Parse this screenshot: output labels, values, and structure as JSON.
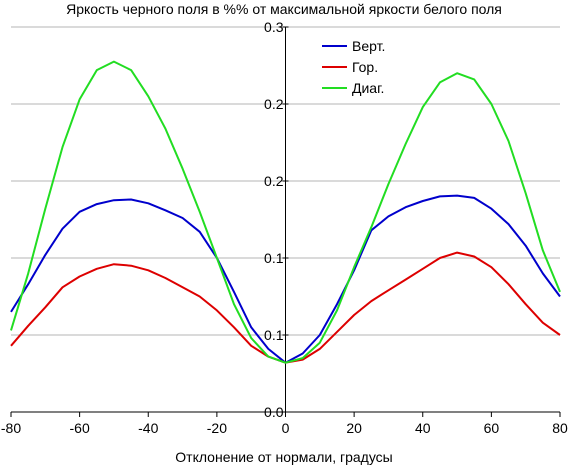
{
  "chart_data": {
    "type": "line",
    "title": "Яркость черного поля в %% от максимальной яркости белого поля",
    "xlabel": "Отклонение от нормали, градусы",
    "ylabel": "",
    "xlim": [
      -80,
      80
    ],
    "ylim": [
      0,
      0.25
    ],
    "x_ticks": [
      -80,
      -60,
      -40,
      -20,
      0,
      20,
      40,
      60,
      80
    ],
    "x_tick_labels": [
      "-80",
      "-60",
      "-40",
      "-20",
      "0",
      "20",
      "40",
      "60",
      "80"
    ],
    "y_ticks": [
      0,
      0.05,
      0.1,
      0.15,
      0.2,
      0.25
    ],
    "y_tick_labels": [
      "0.0",
      "0.1",
      "0.1",
      "0.2",
      "0.2",
      "0.3"
    ],
    "grid": "horizontal",
    "legend_position": "top-right",
    "series": [
      {
        "name": "Верт.",
        "color": "#0000cc",
        "points": [
          [
            -80,
            0.065
          ],
          [
            -75,
            0.083
          ],
          [
            -70,
            0.102
          ],
          [
            -65,
            0.119
          ],
          [
            -60,
            0.13
          ],
          [
            -55,
            0.135
          ],
          [
            -50,
            0.1375
          ],
          [
            -45,
            0.138
          ],
          [
            -40,
            0.1355
          ],
          [
            -35,
            0.131
          ],
          [
            -30,
            0.126
          ],
          [
            -25,
            0.117
          ],
          [
            -20,
            0.1
          ],
          [
            -15,
            0.078
          ],
          [
            -10,
            0.055
          ],
          [
            -5,
            0.041
          ],
          [
            0,
            0.032
          ],
          [
            5,
            0.038
          ],
          [
            10,
            0.05
          ],
          [
            15,
            0.07
          ],
          [
            20,
            0.092
          ],
          [
            25,
            0.118
          ],
          [
            30,
            0.127
          ],
          [
            35,
            0.133
          ],
          [
            40,
            0.137
          ],
          [
            45,
            0.14
          ],
          [
            50,
            0.1405
          ],
          [
            55,
            0.139
          ],
          [
            60,
            0.132
          ],
          [
            65,
            0.122
          ],
          [
            70,
            0.108
          ],
          [
            75,
            0.09
          ],
          [
            80,
            0.075
          ]
        ]
      },
      {
        "name": "Гор.",
        "color": "#dd0000",
        "points": [
          [
            -80,
            0.043
          ],
          [
            -75,
            0.056
          ],
          [
            -70,
            0.068
          ],
          [
            -65,
            0.081
          ],
          [
            -60,
            0.088
          ],
          [
            -55,
            0.093
          ],
          [
            -50,
            0.096
          ],
          [
            -45,
            0.095
          ],
          [
            -40,
            0.092
          ],
          [
            -35,
            0.087
          ],
          [
            -30,
            0.081
          ],
          [
            -25,
            0.075
          ],
          [
            -20,
            0.066
          ],
          [
            -15,
            0.055
          ],
          [
            -10,
            0.043
          ],
          [
            -5,
            0.036
          ],
          [
            0,
            0.032
          ],
          [
            5,
            0.034
          ],
          [
            10,
            0.041
          ],
          [
            15,
            0.052
          ],
          [
            20,
            0.063
          ],
          [
            25,
            0.072
          ],
          [
            30,
            0.079
          ],
          [
            35,
            0.086
          ],
          [
            40,
            0.093
          ],
          [
            45,
            0.1
          ],
          [
            50,
            0.1035
          ],
          [
            55,
            0.101
          ],
          [
            60,
            0.094
          ],
          [
            65,
            0.083
          ],
          [
            70,
            0.07
          ],
          [
            75,
            0.058
          ],
          [
            80,
            0.05
          ]
        ]
      },
      {
        "name": "Диаг.",
        "color": "#22dd22",
        "points": [
          [
            -80,
            0.053
          ],
          [
            -75,
            0.09
          ],
          [
            -70,
            0.132
          ],
          [
            -65,
            0.172
          ],
          [
            -60,
            0.203
          ],
          [
            -55,
            0.222
          ],
          [
            -50,
            0.2275
          ],
          [
            -45,
            0.222
          ],
          [
            -40,
            0.205
          ],
          [
            -35,
            0.184
          ],
          [
            -30,
            0.158
          ],
          [
            -25,
            0.13
          ],
          [
            -20,
            0.1
          ],
          [
            -15,
            0.07
          ],
          [
            -10,
            0.048
          ],
          [
            -5,
            0.036
          ],
          [
            0,
            0.032
          ],
          [
            5,
            0.035
          ],
          [
            10,
            0.045
          ],
          [
            15,
            0.066
          ],
          [
            20,
            0.094
          ],
          [
            25,
            0.12
          ],
          [
            30,
            0.148
          ],
          [
            35,
            0.174
          ],
          [
            40,
            0.198
          ],
          [
            45,
            0.214
          ],
          [
            50,
            0.22
          ],
          [
            55,
            0.216
          ],
          [
            60,
            0.2
          ],
          [
            65,
            0.176
          ],
          [
            70,
            0.142
          ],
          [
            75,
            0.105
          ],
          [
            80,
            0.078
          ]
        ]
      }
    ]
  }
}
